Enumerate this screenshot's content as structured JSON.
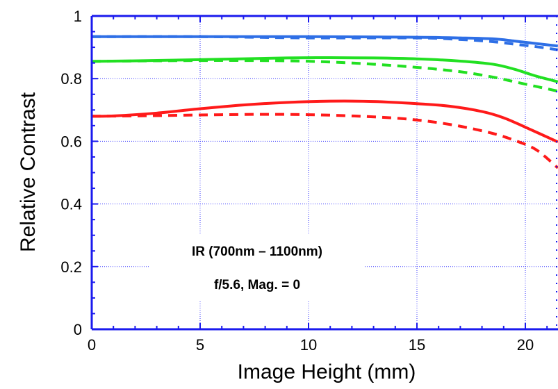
{
  "chart_data": {
    "type": "line",
    "xlabel": "Image Height (mm)",
    "ylabel": "Relative Contrast",
    "xlim": [
      0,
      21.5
    ],
    "ylim": [
      0,
      1
    ],
    "x_ticks": [
      "0",
      "5",
      "10",
      "15",
      "20"
    ],
    "y_ticks": [
      "0",
      "0.2",
      "0.4",
      "0.6",
      "0.8",
      "1"
    ],
    "grid": true,
    "annotations": [
      "IR (700nm – 1100nm)",
      "f/5.6,  Mag. = 0"
    ],
    "series": [
      {
        "color": "#2e6fe6",
        "style": "solid",
        "x": [
          0,
          5,
          10,
          15,
          17,
          18.5,
          19.5,
          20.5,
          21.5
        ],
        "y": [
          0.934,
          0.934,
          0.934,
          0.932,
          0.93,
          0.927,
          0.92,
          0.912,
          0.904
        ]
      },
      {
        "color": "#2e6fe6",
        "style": "dashed",
        "x": [
          0,
          5,
          10,
          15,
          17,
          18.5,
          19.5,
          20.5,
          21.5
        ],
        "y": [
          0.934,
          0.934,
          0.93,
          0.93,
          0.925,
          0.918,
          0.91,
          0.902,
          0.892
        ]
      },
      {
        "color": "#22e022",
        "style": "solid",
        "x": [
          0,
          3,
          6,
          9,
          11,
          13,
          15,
          17,
          18.5,
          19.5,
          20.5,
          21.5
        ],
        "y": [
          0.855,
          0.858,
          0.862,
          0.866,
          0.867,
          0.866,
          0.863,
          0.856,
          0.846,
          0.83,
          0.808,
          0.79
        ]
      },
      {
        "color": "#22e022",
        "style": "dashed",
        "x": [
          0,
          3,
          6,
          9,
          11,
          13,
          15,
          17,
          18.5,
          19.5,
          20.5,
          21.5
        ],
        "y": [
          0.855,
          0.857,
          0.858,
          0.857,
          0.853,
          0.846,
          0.836,
          0.822,
          0.805,
          0.79,
          0.775,
          0.76
        ]
      },
      {
        "color": "#ff1a1a",
        "style": "solid",
        "x": [
          0,
          1,
          3,
          5,
          7,
          9,
          11,
          13,
          15,
          16.5,
          18,
          19,
          20,
          21.5
        ],
        "y": [
          0.68,
          0.681,
          0.69,
          0.704,
          0.716,
          0.724,
          0.728,
          0.727,
          0.72,
          0.712,
          0.695,
          0.675,
          0.645,
          0.598
        ]
      },
      {
        "color": "#ff1a1a",
        "style": "dashed",
        "x": [
          0,
          2,
          4,
          6,
          8,
          10,
          12,
          14,
          15.5,
          17,
          18.5,
          19.5,
          20.5,
          21.5
        ],
        "y": [
          0.68,
          0.681,
          0.683,
          0.685,
          0.686,
          0.685,
          0.681,
          0.674,
          0.664,
          0.648,
          0.625,
          0.603,
          0.573,
          0.515
        ]
      }
    ]
  }
}
